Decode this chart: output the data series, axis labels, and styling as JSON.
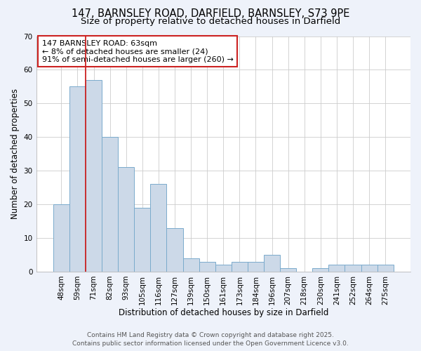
{
  "title_line1": "147, BARNSLEY ROAD, DARFIELD, BARNSLEY, S73 9PE",
  "title_line2": "Size of property relative to detached houses in Darfield",
  "xlabel": "Distribution of detached houses by size in Darfield",
  "ylabel": "Number of detached properties",
  "categories": [
    "48sqm",
    "59sqm",
    "71sqm",
    "82sqm",
    "93sqm",
    "105sqm",
    "116sqm",
    "127sqm",
    "139sqm",
    "150sqm",
    "161sqm",
    "173sqm",
    "184sqm",
    "196sqm",
    "207sqm",
    "218sqm",
    "230sqm",
    "241sqm",
    "252sqm",
    "264sqm",
    "275sqm"
  ],
  "values": [
    20,
    55,
    57,
    40,
    31,
    19,
    26,
    13,
    4,
    3,
    2,
    3,
    3,
    5,
    1,
    0,
    1,
    2,
    2,
    2,
    2
  ],
  "bar_color": "#ccd9e8",
  "bar_edge_color": "#7aabcc",
  "bar_linewidth": 0.7,
  "vline_x_index": 1.5,
  "vline_color": "#cc2222",
  "vline_linewidth": 1.3,
  "annotation_title": "147 BARNSLEY ROAD: 63sqm",
  "annotation_line2": "← 8% of detached houses are smaller (24)",
  "annotation_line3": "91% of semi-detached houses are larger (260) →",
  "annotation_box_color": "#ffffff",
  "annotation_box_edge": "#cc2222",
  "ylim": [
    0,
    70
  ],
  "yticks": [
    0,
    10,
    20,
    30,
    40,
    50,
    60,
    70
  ],
  "grid_color": "#cccccc",
  "plot_bg_color": "#ffffff",
  "fig_bg_color": "#eef2fa",
  "footer_line1": "Contains HM Land Registry data © Crown copyright and database right 2025.",
  "footer_line2": "Contains public sector information licensed under the Open Government Licence v3.0.",
  "title_fontsize": 10.5,
  "subtitle_fontsize": 9.5,
  "axis_label_fontsize": 8.5,
  "tick_fontsize": 7.5,
  "annotation_fontsize": 8,
  "footer_fontsize": 6.5
}
